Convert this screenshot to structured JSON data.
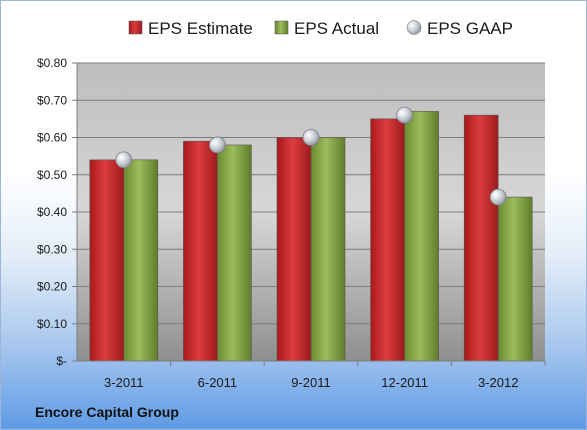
{
  "company": "Encore Capital Group",
  "chart_data": {
    "type": "bar",
    "categories": [
      "3-2011",
      "6-2011",
      "9-2011",
      "12-2011",
      "3-2012"
    ],
    "series": [
      {
        "name": "EPS Estimate",
        "kind": "bar",
        "color": "#c0282a",
        "values": [
          0.54,
          0.59,
          0.6,
          0.65,
          0.66
        ]
      },
      {
        "name": "EPS Actual",
        "kind": "bar",
        "color": "#7f9c3e",
        "values": [
          0.54,
          0.58,
          0.6,
          0.67,
          0.44
        ]
      },
      {
        "name": "EPS GAAP",
        "kind": "marker",
        "color": "#b8bcc4",
        "values": [
          0.54,
          0.58,
          0.6,
          0.66,
          0.44
        ]
      }
    ],
    "yticks": [
      "$-",
      "$0.10",
      "$0.20",
      "$0.30",
      "$0.40",
      "$0.50",
      "$0.60",
      "$0.70",
      "$0.80"
    ],
    "ylim": [
      0,
      0.8
    ],
    "grid": true,
    "legend_position": "top"
  }
}
